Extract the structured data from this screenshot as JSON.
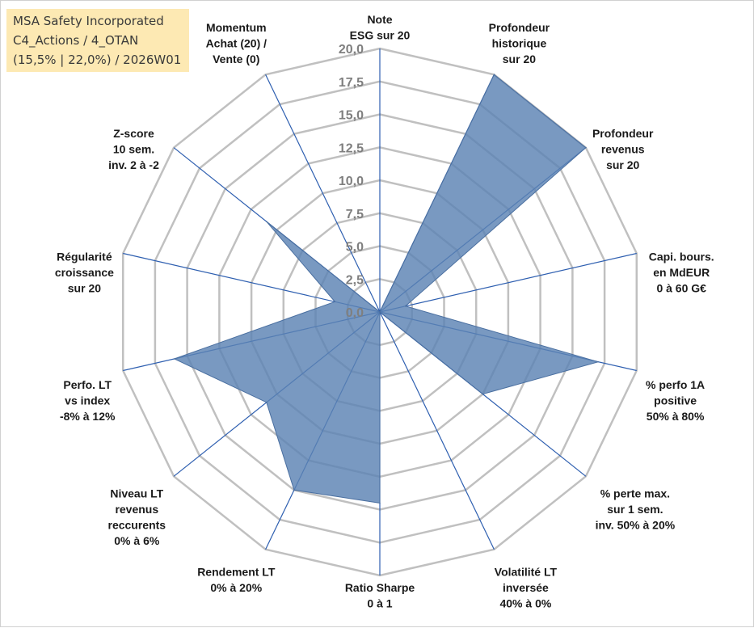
{
  "title_box": {
    "line1": "MSA Safety Incorporated",
    "line2": "C4_Actions / 4_OTAN",
    "line3": "(15,5% | 22,0%) / 2026W01"
  },
  "chart_data": {
    "type": "radar",
    "rmax": 20,
    "ticks": [
      "0,0",
      "2,5",
      "5,0",
      "7,5",
      "10,0",
      "12,5",
      "15,0",
      "17,5",
      "20,0"
    ],
    "tick_values": [
      0,
      2.5,
      5,
      7.5,
      10,
      12.5,
      15,
      17.5,
      20
    ],
    "grid": true,
    "fill_color": "#5b82b3",
    "spoke_color": "#2e5fb0",
    "grid_color": "#c0c0c0",
    "axes": [
      {
        "label": [
          "Note",
          "ESG sur 20"
        ],
        "value": 0
      },
      {
        "label": [
          "Profondeur",
          "historique",
          "sur 20"
        ],
        "value": 20
      },
      {
        "label": [
          "Profondeur",
          "revenus",
          "sur 20"
        ],
        "value": 20
      },
      {
        "label": [
          "Capi. bours.",
          "en MdEUR",
          "0 à 60 G€"
        ],
        "value": 2
      },
      {
        "label": [
          "% perfo 1A",
          "positive",
          "50% à 80%"
        ],
        "value": 17
      },
      {
        "label": [
          "% perte max.",
          "sur 1 sem.",
          "inv. 50% à 20%"
        ],
        "value": 10
      },
      {
        "label": [
          "Volatilité LT",
          "inversée",
          "40% à 0%"
        ],
        "value": 0
      },
      {
        "label": [
          "Ratio Sharpe",
          "0 à 1"
        ],
        "value": 14.5
      },
      {
        "label": [
          "Rendement LT",
          "0% à 20%"
        ],
        "value": 15
      },
      {
        "label": [
          "Niveau LT",
          "revenus",
          "reccurents",
          "0% à 6%"
        ],
        "value": 11
      },
      {
        "label": [
          "Perfo. LT",
          "vs index",
          "-8% à 12%"
        ],
        "value": 16
      },
      {
        "label": [
          "Régularité",
          "croissance",
          "sur 20"
        ],
        "value": 3.5
      },
      {
        "label": [
          "Z-score",
          "10 sem.",
          "inv. 2 à -2"
        ],
        "value": 11
      },
      {
        "label": [
          "Momentum",
          "Achat (20) /",
          "Vente (0)"
        ],
        "value": 0
      }
    ]
  }
}
